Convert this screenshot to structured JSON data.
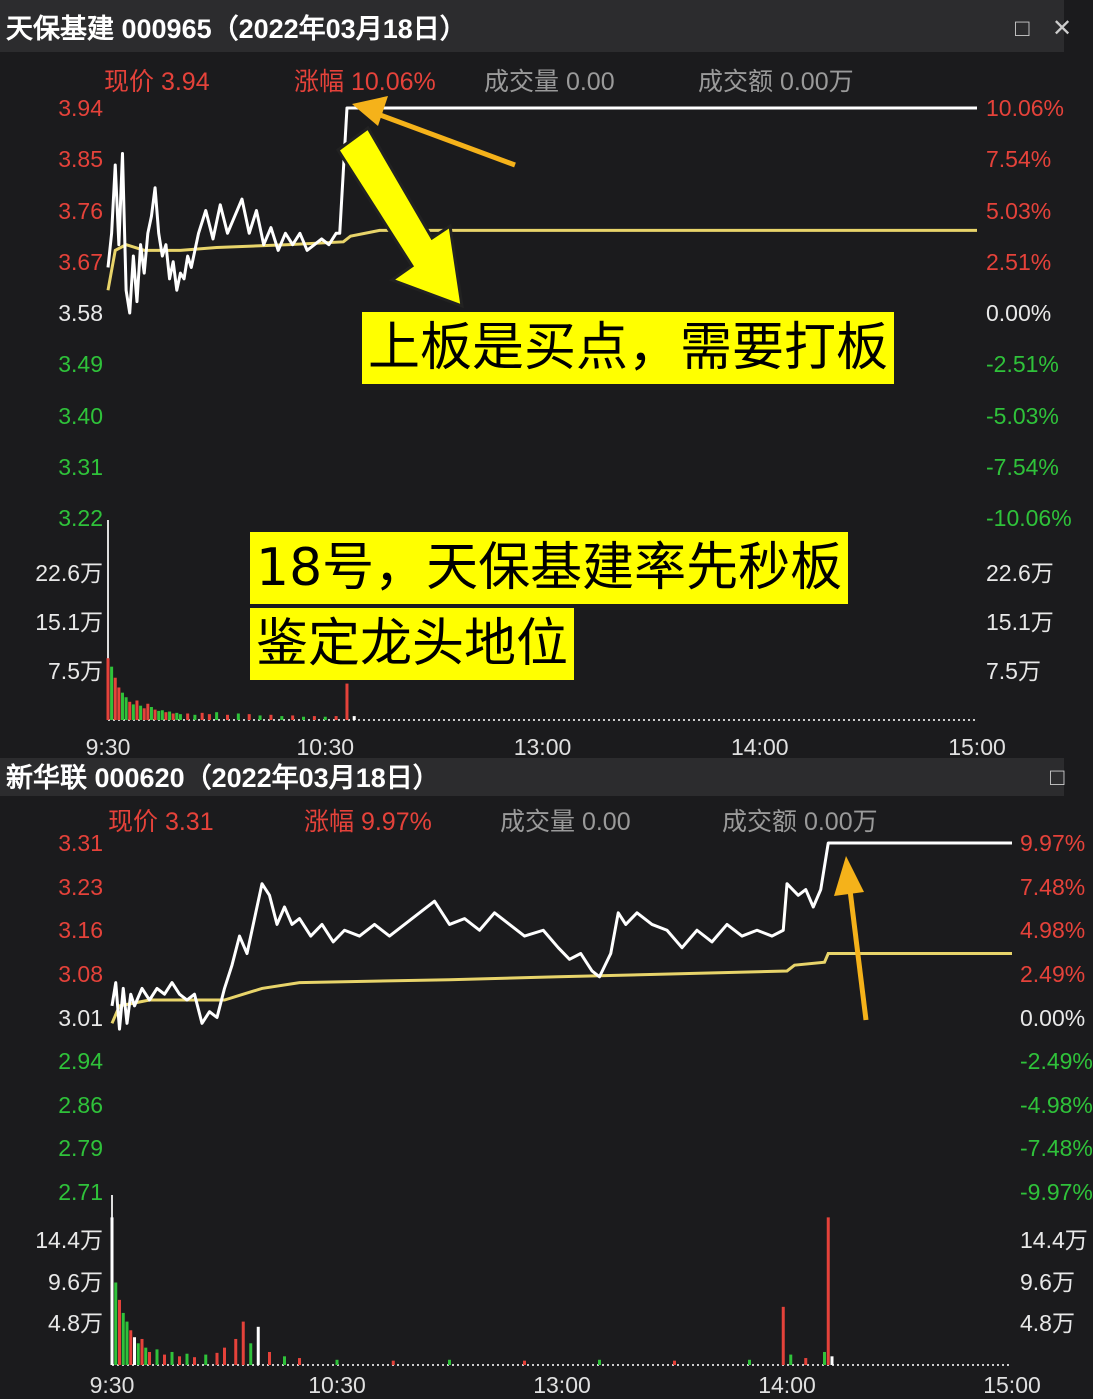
{
  "panels": [
    {
      "title": "天保基建 000965（2022年03月18日）",
      "price_label": "现价 3.94",
      "change_label": "涨幅 10.06%",
      "volume_label": "成交量 0.00",
      "amount_label": "成交额 0.00万"
    },
    {
      "title": "新华联 000620（2022年03月18日）",
      "price_label": "现价 3.31",
      "change_label": "涨幅 9.97%",
      "volume_label": "成交量 0.00",
      "amount_label": "成交额 0.00万"
    }
  ],
  "window_icons": [
    "maximize-icon",
    "close-icon"
  ],
  "annotations": {
    "note1": "上板是买点，需要打板",
    "note2_line1": "18号，天保基建率先秒板",
    "note2_line2": "鉴定龙头地位"
  },
  "colors": {
    "up": "#e5423a",
    "down": "#2fc23a",
    "price_line": "#ffffff",
    "avg_line": "#e8d46a",
    "note_bg": "#ffff00",
    "arrow": "#f5b21a"
  },
  "chart_data": [
    {
      "type": "line",
      "title": "天保基建 000965（2022年03月18日）",
      "x_ticks": [
        "9:30",
        "10:30",
        "13:00",
        "14:00",
        "15:00"
      ],
      "price_ticks_left": [
        "3.94",
        "3.85",
        "3.76",
        "3.67",
        "3.58",
        "3.49",
        "3.40",
        "3.31",
        "3.22"
      ],
      "price_ticks_right": [
        "10.06%",
        "7.54%",
        "5.03%",
        "2.51%",
        "0.00%",
        "-2.51%",
        "-5.03%",
        "-7.54%",
        "-10.06%"
      ],
      "ylim": [
        3.22,
        3.94
      ],
      "volume_ticks": [
        "22.6万",
        "15.1万",
        "7.5万"
      ],
      "volume_max": 22.6,
      "price": [
        [
          "9:30",
          3.66
        ],
        [
          "9:31",
          3.72
        ],
        [
          "9:32",
          3.84
        ],
        [
          "9:33",
          3.7
        ],
        [
          "9:34",
          3.86
        ],
        [
          "9:35",
          3.62
        ],
        [
          "9:36",
          3.58
        ],
        [
          "9:37",
          3.68
        ],
        [
          "9:38",
          3.6
        ],
        [
          "9:39",
          3.7
        ],
        [
          "9:40",
          3.65
        ],
        [
          "9:41",
          3.72
        ],
        [
          "9:42",
          3.75
        ],
        [
          "9:43",
          3.8
        ],
        [
          "9:44",
          3.72
        ],
        [
          "9:45",
          3.68
        ],
        [
          "9:46",
          3.7
        ],
        [
          "9:47",
          3.64
        ],
        [
          "9:48",
          3.67
        ],
        [
          "9:49",
          3.62
        ],
        [
          "9:50",
          3.65
        ],
        [
          "9:51",
          3.64
        ],
        [
          "9:52",
          3.68
        ],
        [
          "9:53",
          3.66
        ],
        [
          "9:55",
          3.72
        ],
        [
          "9:57",
          3.76
        ],
        [
          "9:59",
          3.71
        ],
        [
          "10:01",
          3.77
        ],
        [
          "10:03",
          3.72
        ],
        [
          "10:05",
          3.75
        ],
        [
          "10:07",
          3.78
        ],
        [
          "10:09",
          3.72
        ],
        [
          "10:11",
          3.76
        ],
        [
          "10:13",
          3.7
        ],
        [
          "10:15",
          3.73
        ],
        [
          "10:17",
          3.69
        ],
        [
          "10:19",
          3.72
        ],
        [
          "10:21",
          3.7
        ],
        [
          "10:23",
          3.72
        ],
        [
          "10:25",
          3.69
        ],
        [
          "10:27",
          3.7
        ],
        [
          "10:29",
          3.71
        ],
        [
          "10:31",
          3.7
        ],
        [
          "10:33",
          3.72
        ],
        [
          "10:34",
          3.72
        ],
        [
          "10:36",
          3.94
        ],
        [
          "15:00",
          3.94
        ]
      ],
      "average": [
        [
          "9:30",
          3.62
        ],
        [
          "9:32",
          3.69
        ],
        [
          "9:35",
          3.7
        ],
        [
          "9:40",
          3.69
        ],
        [
          "9:50",
          3.69
        ],
        [
          "10:00",
          3.695
        ],
        [
          "10:20",
          3.7
        ],
        [
          "10:35",
          3.705
        ],
        [
          "10:37",
          3.715
        ],
        [
          "10:45",
          3.725
        ],
        [
          "11:30",
          3.725
        ],
        [
          "15:00",
          3.725
        ]
      ],
      "volume": [
        [
          "9:30",
          9.5,
          "r"
        ],
        [
          "9:31",
          8.2,
          "g"
        ],
        [
          "9:32",
          6.5,
          "r"
        ],
        [
          "9:33",
          5.0,
          "r"
        ],
        [
          "9:34",
          4.2,
          "g"
        ],
        [
          "9:35",
          3.5,
          "g"
        ],
        [
          "9:36",
          2.8,
          "r"
        ],
        [
          "9:37",
          2.4,
          "g"
        ],
        [
          "9:38",
          3.0,
          "r"
        ],
        [
          "9:39",
          2.2,
          "g"
        ],
        [
          "9:40",
          1.8,
          "r"
        ],
        [
          "9:41",
          2.5,
          "r"
        ],
        [
          "9:42",
          2.0,
          "g"
        ],
        [
          "9:43",
          1.6,
          "r"
        ],
        [
          "9:44",
          1.4,
          "g"
        ],
        [
          "9:45",
          1.5,
          "g"
        ],
        [
          "9:46",
          1.2,
          "r"
        ],
        [
          "9:47",
          1.3,
          "g"
        ],
        [
          "9:48",
          1.0,
          "r"
        ],
        [
          "9:49",
          1.1,
          "g"
        ],
        [
          "9:50",
          0.9,
          "g"
        ],
        [
          "9:52",
          1.0,
          "r"
        ],
        [
          "9:54",
          0.8,
          "g"
        ],
        [
          "9:56",
          1.1,
          "r"
        ],
        [
          "9:58",
          0.9,
          "r"
        ],
        [
          "10:00",
          1.2,
          "g"
        ],
        [
          "10:03",
          0.8,
          "r"
        ],
        [
          "10:06",
          1.0,
          "g"
        ],
        [
          "10:09",
          0.9,
          "r"
        ],
        [
          "10:12",
          0.7,
          "g"
        ],
        [
          "10:15",
          0.8,
          "r"
        ],
        [
          "10:18",
          0.6,
          "g"
        ],
        [
          "10:21",
          0.7,
          "r"
        ],
        [
          "10:24",
          0.5,
          "g"
        ],
        [
          "10:27",
          0.6,
          "r"
        ],
        [
          "10:30",
          0.5,
          "g"
        ],
        [
          "10:33",
          0.6,
          "r"
        ],
        [
          "10:36",
          5.6,
          "r"
        ],
        [
          "10:38",
          0.6,
          "w"
        ]
      ]
    },
    {
      "type": "line",
      "title": "新华联 000620（2022年03月18日）",
      "x_ticks": [
        "9:30",
        "10:30",
        "13:00",
        "14:00",
        "15:00"
      ],
      "price_ticks_left": [
        "3.31",
        "3.23",
        "3.16",
        "3.08",
        "3.01",
        "2.94",
        "2.86",
        "2.79",
        "2.71"
      ],
      "price_ticks_right": [
        "9.97%",
        "7.48%",
        "4.98%",
        "2.49%",
        "0.00%",
        "-2.49%",
        "-4.98%",
        "-7.48%",
        "-9.97%"
      ],
      "ylim": [
        2.71,
        3.31
      ],
      "volume_ticks": [
        "14.4万",
        "9.6万",
        "4.8万"
      ],
      "volume_max": 14.4,
      "price": [
        [
          "9:30",
          3.03
        ],
        [
          "9:31",
          3.07
        ],
        [
          "9:32",
          2.99
        ],
        [
          "9:33",
          3.06
        ],
        [
          "9:34",
          3.0
        ],
        [
          "9:35",
          3.05
        ],
        [
          "9:36",
          3.03
        ],
        [
          "9:38",
          3.06
        ],
        [
          "9:40",
          3.04
        ],
        [
          "9:42",
          3.06
        ],
        [
          "9:44",
          3.05
        ],
        [
          "9:46",
          3.07
        ],
        [
          "9:48",
          3.05
        ],
        [
          "9:50",
          3.04
        ],
        [
          "9:52",
          3.05
        ],
        [
          "9:54",
          3.0
        ],
        [
          "9:56",
          3.02
        ],
        [
          "9:58",
          3.01
        ],
        [
          "10:00",
          3.06
        ],
        [
          "10:02",
          3.1
        ],
        [
          "10:04",
          3.15
        ],
        [
          "10:06",
          3.12
        ],
        [
          "10:08",
          3.18
        ],
        [
          "10:10",
          3.24
        ],
        [
          "10:12",
          3.22
        ],
        [
          "10:14",
          3.17
        ],
        [
          "10:16",
          3.2
        ],
        [
          "10:18",
          3.17
        ],
        [
          "10:20",
          3.18
        ],
        [
          "10:23",
          3.15
        ],
        [
          "10:26",
          3.17
        ],
        [
          "10:29",
          3.14
        ],
        [
          "10:32",
          3.16
        ],
        [
          "10:36",
          3.15
        ],
        [
          "10:40",
          3.17
        ],
        [
          "10:44",
          3.15
        ],
        [
          "10:48",
          3.17
        ],
        [
          "10:52",
          3.19
        ],
        [
          "10:56",
          3.21
        ],
        [
          "11:00",
          3.17
        ],
        [
          "11:04",
          3.18
        ],
        [
          "11:08",
          3.16
        ],
        [
          "11:12",
          3.19
        ],
        [
          "11:16",
          3.17
        ],
        [
          "11:20",
          3.15
        ],
        [
          "11:25",
          3.16
        ],
        [
          "11:29",
          3.13
        ],
        [
          "13:02",
          3.11
        ],
        [
          "13:05",
          3.12
        ],
        [
          "13:08",
          3.09
        ],
        [
          "13:10",
          3.08
        ],
        [
          "13:13",
          3.12
        ],
        [
          "13:15",
          3.19
        ],
        [
          "13:17",
          3.17
        ],
        [
          "13:20",
          3.19
        ],
        [
          "13:24",
          3.17
        ],
        [
          "13:28",
          3.16
        ],
        [
          "13:32",
          3.13
        ],
        [
          "13:36",
          3.16
        ],
        [
          "13:40",
          3.14
        ],
        [
          "13:44",
          3.17
        ],
        [
          "13:48",
          3.15
        ],
        [
          "13:52",
          3.16
        ],
        [
          "13:56",
          3.15
        ],
        [
          "13:59",
          3.16
        ],
        [
          "14:00",
          3.24
        ],
        [
          "14:03",
          3.22
        ],
        [
          "14:05",
          3.23
        ],
        [
          "14:07",
          3.2
        ],
        [
          "14:09",
          3.23
        ],
        [
          "14:11",
          3.31
        ],
        [
          "15:00",
          3.31
        ]
      ],
      "average": [
        [
          "9:30",
          3.0
        ],
        [
          "9:32",
          3.03
        ],
        [
          "9:40",
          3.04
        ],
        [
          "10:00",
          3.04
        ],
        [
          "10:05",
          3.05
        ],
        [
          "10:10",
          3.06
        ],
        [
          "10:20",
          3.07
        ],
        [
          "11:00",
          3.075
        ],
        [
          "11:29",
          3.08
        ],
        [
          "13:30",
          3.085
        ],
        [
          "14:00",
          3.09
        ],
        [
          "14:02",
          3.1
        ],
        [
          "14:10",
          3.105
        ],
        [
          "14:11",
          3.12
        ],
        [
          "15:00",
          3.12
        ]
      ],
      "volume": [
        [
          "9:30",
          17.0,
          "w"
        ],
        [
          "9:31",
          9.5,
          "g"
        ],
        [
          "9:32",
          7.5,
          "r"
        ],
        [
          "9:33",
          6.0,
          "g"
        ],
        [
          "9:34",
          5.0,
          "g"
        ],
        [
          "9:35",
          4.0,
          "r"
        ],
        [
          "9:36",
          3.2,
          "w"
        ],
        [
          "9:37",
          2.5,
          "g"
        ],
        [
          "9:38",
          3.0,
          "r"
        ],
        [
          "9:39",
          2.0,
          "g"
        ],
        [
          "9:40",
          1.5,
          "r"
        ],
        [
          "9:42",
          1.8,
          "g"
        ],
        [
          "9:44",
          1.2,
          "r"
        ],
        [
          "9:46",
          1.5,
          "g"
        ],
        [
          "9:48",
          1.0,
          "r"
        ],
        [
          "9:50",
          1.3,
          "g"
        ],
        [
          "9:52",
          0.9,
          "r"
        ],
        [
          "9:55",
          1.2,
          "g"
        ],
        [
          "9:58",
          1.4,
          "r"
        ],
        [
          "10:00",
          2.0,
          "r"
        ],
        [
          "10:03",
          3.0,
          "r"
        ],
        [
          "10:05",
          5.0,
          "r"
        ],
        [
          "10:07",
          2.5,
          "g"
        ],
        [
          "10:09",
          4.4,
          "w"
        ],
        [
          "10:12",
          1.5,
          "r"
        ],
        [
          "10:16",
          1.0,
          "g"
        ],
        [
          "10:20",
          0.8,
          "r"
        ],
        [
          "10:30",
          0.6,
          "g"
        ],
        [
          "10:45",
          0.5,
          "r"
        ],
        [
          "11:00",
          0.6,
          "g"
        ],
        [
          "11:20",
          0.5,
          "r"
        ],
        [
          "13:10",
          0.6,
          "g"
        ],
        [
          "13:30",
          0.5,
          "r"
        ],
        [
          "13:50",
          0.6,
          "g"
        ],
        [
          "13:59",
          6.7,
          "r"
        ],
        [
          "14:01",
          1.2,
          "g"
        ],
        [
          "14:05",
          0.8,
          "r"
        ],
        [
          "14:10",
          1.5,
          "g"
        ],
        [
          "14:11",
          17.0,
          "r"
        ],
        [
          "14:12",
          1.0,
          "w"
        ]
      ]
    }
  ]
}
